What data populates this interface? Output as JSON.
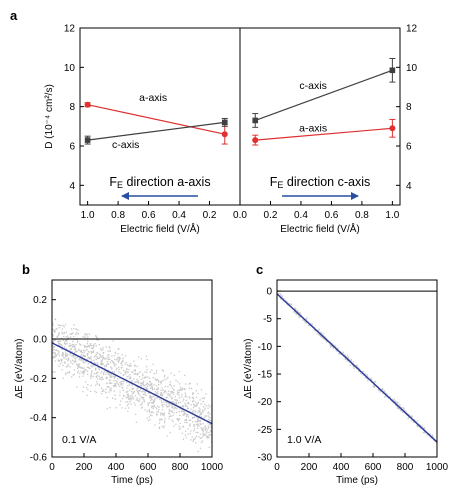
{
  "chart_data": [
    {
      "panel": "a",
      "type": "line",
      "subplot": "left",
      "xlabel": "Electric field (V/Å)",
      "ylabel": "D (10⁻⁴ cm²/s)",
      "xlim": [
        1.05,
        0.0
      ],
      "ylim": [
        3,
        12
      ],
      "xticks": [
        1.0,
        0.8,
        0.6,
        0.4,
        0.2
      ],
      "xtick_labels": [
        "1.0",
        "0.8",
        "0.6",
        "0.4",
        "0.2"
      ],
      "yticks": [
        4,
        6,
        8,
        10,
        12
      ],
      "ytick_labels": [
        "4",
        "6",
        "8",
        "10",
        "12"
      ],
      "grid": false,
      "series": [
        {
          "name": "a-axis",
          "color": "#e03030",
          "x": [
            1.0,
            0.1
          ],
          "y": [
            8.1,
            6.6
          ],
          "err": [
            0.1,
            0.5
          ]
        },
        {
          "name": "c-axis",
          "color": "#404040",
          "x": [
            1.0,
            0.1
          ],
          "y": [
            6.3,
            7.2
          ],
          "err": [
            0.2,
            0.2
          ]
        }
      ],
      "annotation": {
        "prefix": "F",
        "sub": "E",
        "suffix": " direction a-axis",
        "arrow": "left"
      }
    },
    {
      "panel": "a",
      "type": "line",
      "subplot": "right",
      "xlabel": "Electric field (V/Å)",
      "ylabel": "",
      "xlim": [
        0.0,
        1.05
      ],
      "ylim": [
        3,
        12
      ],
      "xticks": [
        0.0,
        0.2,
        0.4,
        0.6,
        0.8,
        1.0
      ],
      "xtick_labels": [
        "0.0",
        "0.2",
        "0.4",
        "0.6",
        "0.8",
        "1.0"
      ],
      "yticks": [
        4,
        6,
        8,
        10,
        12
      ],
      "ytick_labels": [
        "4",
        "6",
        "8",
        "10",
        "12"
      ],
      "grid": false,
      "series": [
        {
          "name": "c-axis",
          "color": "#404040",
          "x": [
            0.1,
            1.0
          ],
          "y": [
            7.3,
            9.85
          ],
          "err": [
            0.35,
            0.6
          ]
        },
        {
          "name": "a-axis",
          "color": "#e03030",
          "x": [
            0.1,
            1.0
          ],
          "y": [
            6.3,
            6.9
          ],
          "err": [
            0.25,
            0.45
          ]
        }
      ],
      "annotation": {
        "prefix": "F",
        "sub": "E",
        "suffix": " direction c-axis",
        "arrow": "right"
      }
    },
    {
      "panel": "b",
      "type": "scatter",
      "xlabel": "Time (ps)",
      "ylabel": "ΔE (eV/atom)",
      "xlim": [
        0,
        1000
      ],
      "ylim": [
        -0.6,
        0.3
      ],
      "xticks": [
        0,
        200,
        400,
        600,
        800,
        1000
      ],
      "yticks": [
        -0.6,
        -0.4,
        -0.2,
        0.0,
        0.2
      ],
      "ytick_labels": [
        "-0.6",
        "-0.4",
        "-0.2",
        "0.0",
        "0.2"
      ],
      "grid": false,
      "fit_line": {
        "x": [
          0,
          1000
        ],
        "y": [
          -0.02,
          -0.43
        ],
        "color": "#2a3a9a"
      },
      "zero_line": 0.0,
      "scatter": {
        "color": "#c8c8c8",
        "trend_start": -0.02,
        "trend_end": -0.43,
        "spread": 0.07
      },
      "annotation": "0.1 V/A"
    },
    {
      "panel": "c",
      "type": "scatter",
      "xlabel": "Time (ps)",
      "ylabel": "ΔE (eV/atom)",
      "xlim": [
        0,
        1000
      ],
      "ylim": [
        -30,
        2
      ],
      "xticks": [
        0,
        200,
        400,
        600,
        800,
        1000
      ],
      "yticks": [
        -30,
        -25,
        -20,
        -15,
        -10,
        -5,
        0
      ],
      "grid": false,
      "fit_line": {
        "x": [
          0,
          1000
        ],
        "y": [
          -0.5,
          -27.3
        ],
        "color": "#2a3a9a"
      },
      "zero_line": 0,
      "scatter": {
        "color": "#c8c8c8",
        "trend_start": -0.5,
        "trend_end": -27.3,
        "spread": 0.25
      },
      "annotation": "1.0 V/A"
    }
  ],
  "labels": {
    "panel_a": "a",
    "panel_b": "b",
    "panel_c": "c"
  }
}
